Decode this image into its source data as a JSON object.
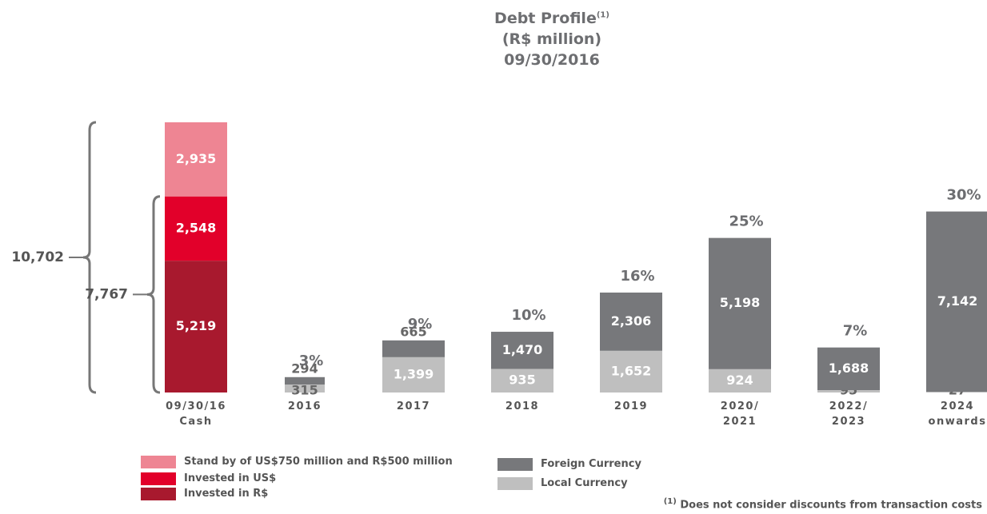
{
  "chart_data": {
    "type": "stacked_bar",
    "title": "Debt Profile",
    "title_note": "(1)",
    "subtitle": [
      "(R$ million)",
      "09/30/2016"
    ],
    "categories": [
      "09/30/16\nCash",
      "2016",
      "2017",
      "2018",
      "2019",
      "2020/\n2021",
      "2022/\n2023",
      "2024\nonwards"
    ],
    "series": [
      {
        "name": "Invested in R$",
        "color": "#a8192e",
        "values": [
          5219,
          null,
          null,
          null,
          null,
          null,
          null,
          null
        ],
        "value_labels": [
          "5,219",
          null,
          null,
          null,
          null,
          null,
          null,
          null
        ]
      },
      {
        "name": "Invested in US$",
        "color": "#e2002a",
        "values": [
          2548,
          null,
          null,
          null,
          null,
          null,
          null,
          null
        ],
        "value_labels": [
          "2,548",
          null,
          null,
          null,
          null,
          null,
          null,
          null
        ]
      },
      {
        "name": "Stand by of US$750 million and R$500 million",
        "color": "#ee8593",
        "values": [
          2935,
          null,
          null,
          null,
          null,
          null,
          null,
          null
        ],
        "value_labels": [
          "2,935",
          null,
          null,
          null,
          null,
          null,
          null,
          null
        ]
      },
      {
        "name": "Local Currency",
        "color": "#bfbfbf",
        "values": [
          null,
          315,
          1399,
          935,
          1652,
          924,
          95,
          27
        ],
        "value_labels": [
          null,
          "315",
          "1,399",
          "935",
          "1,652",
          "924",
          "95",
          "27"
        ]
      },
      {
        "name": "Foreign Currency",
        "color": "#77787b",
        "values": [
          null,
          294,
          665,
          1470,
          2306,
          5198,
          1688,
          7142
        ],
        "value_labels": [
          null,
          "294",
          "665",
          "1,470",
          "2,306",
          "5,198",
          "1,688",
          "7,142"
        ]
      }
    ],
    "shares": {
      "values": [
        null,
        3,
        9,
        10,
        16,
        25,
        7,
        30
      ],
      "value_labels": [
        null,
        "3%",
        "9%",
        "10%",
        "16%",
        "25%",
        "7%",
        "30%"
      ]
    },
    "brackets": [
      {
        "value": 10702,
        "label": "10,702"
      },
      {
        "value": 7767,
        "label": "7,767"
      }
    ],
    "ylim": [
      0,
      10702
    ],
    "footnote_mark": "(1)",
    "footnote": "Does not consider discounts from transaction costs"
  }
}
